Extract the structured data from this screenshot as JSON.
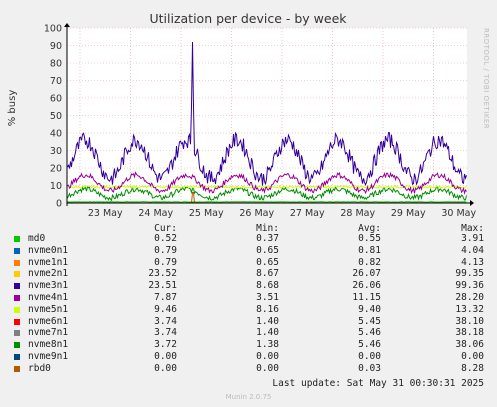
{
  "chart_data": {
    "type": "line",
    "title": "Utilization per device - by week",
    "ylabel": "% busy",
    "ylim": [
      0,
      100
    ],
    "yticks": [
      0,
      10,
      20,
      30,
      40,
      50,
      60,
      70,
      80,
      90,
      100
    ],
    "x_tick_labels": [
      "23 May",
      "24 May",
      "25 May",
      "26 May",
      "27 May",
      "28 May",
      "29 May",
      "30 May"
    ],
    "grid": true,
    "series_colors": {
      "md0": "#00cc00",
      "nvme0n1": "#0066b3",
      "nvme1n1": "#ff8000",
      "nvme2n1": "#ffcc00",
      "nvme3n1": "#330099",
      "nvme4n1": "#990099",
      "nvme5n1": "#ccff00",
      "nvme6n1": "#ff0000",
      "nvme7n1": "#808080",
      "nvme8n1": "#008f00",
      "nvme9n1": "#00487d",
      "rbd0": "#b35a00"
    },
    "series_levels": {
      "nvme3n1_typical_range": [
        15,
        40
      ],
      "nvme3n1_peak": 92,
      "nvme4n1_typical_range": [
        8,
        18
      ],
      "nvme5n1_typical_range": [
        8.5,
        10
      ],
      "nvme8n1_typical_range": [
        3,
        10
      ]
    }
  },
  "legend": {
    "headers": {
      "cur": "Cur:",
      "min": "Min:",
      "avg": "Avg:",
      "max": "Max:"
    },
    "rows": [
      {
        "name": "md0",
        "color": "#00cc00",
        "cur": "0.52",
        "min": "0.37",
        "avg": "0.55",
        "max": "3.91"
      },
      {
        "name": "nvme0n1",
        "color": "#0066b3",
        "cur": "0.79",
        "min": "0.65",
        "avg": "0.81",
        "max": "4.04"
      },
      {
        "name": "nvme1n1",
        "color": "#ff8000",
        "cur": "0.79",
        "min": "0.65",
        "avg": "0.82",
        "max": "4.13"
      },
      {
        "name": "nvme2n1",
        "color": "#ffcc00",
        "cur": "23.52",
        "min": "8.67",
        "avg": "26.07",
        "max": "99.35"
      },
      {
        "name": "nvme3n1",
        "color": "#330099",
        "cur": "23.51",
        "min": "8.68",
        "avg": "26.06",
        "max": "99.36"
      },
      {
        "name": "nvme4n1",
        "color": "#990099",
        "cur": "7.87",
        "min": "3.51",
        "avg": "11.15",
        "max": "28.20"
      },
      {
        "name": "nvme5n1",
        "color": "#ccff00",
        "cur": "9.46",
        "min": "8.16",
        "avg": "9.40",
        "max": "13.32"
      },
      {
        "name": "nvme6n1",
        "color": "#ff0000",
        "cur": "3.74",
        "min": "1.40",
        "avg": "5.45",
        "max": "38.10"
      },
      {
        "name": "nvme7n1",
        "color": "#808080",
        "cur": "3.74",
        "min": "1.40",
        "avg": "5.46",
        "max": "38.18"
      },
      {
        "name": "nvme8n1",
        "color": "#008f00",
        "cur": "3.72",
        "min": "1.38",
        "avg": "5.46",
        "max": "38.06"
      },
      {
        "name": "nvme9n1",
        "color": "#00487d",
        "cur": "0.00",
        "min": "0.00",
        "avg": "0.00",
        "max": "0.00"
      },
      {
        "name": "rbd0",
        "color": "#b35a00",
        "cur": "0.00",
        "min": "0.00",
        "avg": "0.03",
        "max": "8.28"
      }
    ]
  },
  "footer": {
    "last_update": "Last update: Sat May 31 00:30:31 2025",
    "munin": "Munin 2.0.75",
    "rrdtool": "RRDTOOL / TOBI OETIKER"
  }
}
